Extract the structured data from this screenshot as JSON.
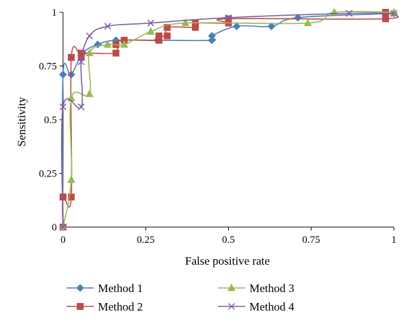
{
  "chart_data": {
    "type": "line",
    "title": "",
    "xlabel": "False positive rate",
    "ylabel": "Sensitivity",
    "xlim": [
      0,
      1
    ],
    "ylim": [
      0,
      1
    ],
    "xticks": [
      0,
      0.25,
      0.5,
      0.75,
      1
    ],
    "yticks": [
      0,
      0.25,
      0.5,
      0.75,
      1
    ],
    "xtick_labels": [
      "0",
      "0.25",
      "0.5",
      "0.75",
      "1"
    ],
    "ytick_labels": [
      "0",
      "0.25",
      "0.5",
      "0.75",
      "1"
    ],
    "grid": false,
    "legend_position": "bottom",
    "series": [
      {
        "name": "Method 1",
        "color": "#4a7ebb",
        "marker": "diamond",
        "x": [
          0,
          0,
          0.025,
          0.06,
          0.105,
          0.16,
          0.285,
          0.45,
          0.45,
          0.525,
          0.63,
          0.71,
          1
        ],
        "y": [
          0,
          0.71,
          0.71,
          0.81,
          0.85,
          0.87,
          0.87,
          0.87,
          0.89,
          0.935,
          0.935,
          0.975,
          0.995
        ]
      },
      {
        "name": "Method 2",
        "color": "#be4b48",
        "marker": "square",
        "x": [
          0,
          0,
          0.025,
          0.025,
          0.055,
          0.055,
          0.16,
          0.16,
          0.185,
          0.29,
          0.29,
          0.315,
          0.315,
          0.4,
          0.4,
          0.5,
          0.5,
          0.975,
          0.975
        ],
        "y": [
          0,
          0.14,
          0.14,
          0.79,
          0.79,
          0.81,
          0.81,
          0.85,
          0.87,
          0.87,
          0.89,
          0.89,
          0.93,
          0.93,
          0.95,
          0.95,
          0.97,
          0.97,
          1.0
        ]
      },
      {
        "name": "Method 3",
        "color": "#98b954",
        "marker": "triangle",
        "x": [
          0,
          0.025,
          0.025,
          0.08,
          0.08,
          0.135,
          0.185,
          0.265,
          0.37,
          0.74,
          0.82,
          1
        ],
        "y": [
          0,
          0.22,
          0.6,
          0.62,
          0.81,
          0.85,
          0.85,
          0.91,
          0.95,
          0.95,
          1.0,
          1.0
        ]
      },
      {
        "name": "Method 4",
        "color": "#7d60a0",
        "marker": "x",
        "x": [
          0,
          0,
          0.055,
          0.055,
          0.08,
          0.135,
          0.265,
          0.5,
          0.865,
          1
        ],
        "y": [
          0,
          0.56,
          0.56,
          0.77,
          0.89,
          0.935,
          0.95,
          0.975,
          0.995,
          0.995
        ]
      }
    ]
  }
}
